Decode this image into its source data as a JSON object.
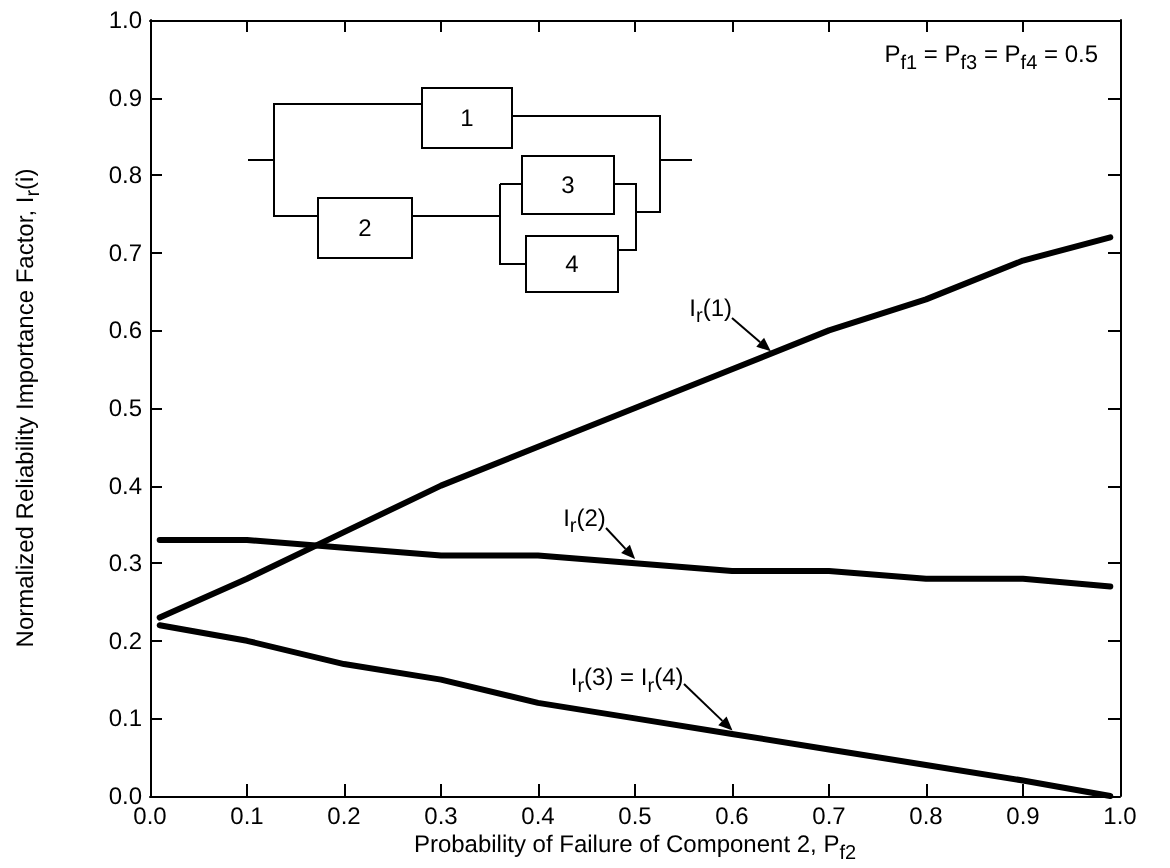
{
  "chart_data": {
    "type": "line",
    "xlabel": "Probability of Failure of Component 2, P$_{f2}$",
    "ylabel": "Normalized Reliability Importance Factor, I$_{r}$(i)",
    "annotations": [
      "P$_{f1}$ = P$_{f3}$ = P$_{f4}$ = 0.5",
      "1",
      "2",
      "3",
      "4"
    ],
    "x": [
      0.01,
      0.1,
      0.2,
      0.3,
      0.4,
      0.5,
      0.6,
      0.7,
      0.8,
      0.9,
      0.99
    ],
    "series": [
      {
        "name": "I$_{r}$(1)",
        "color": "#000000",
        "values": [
          0.23,
          0.28,
          0.34,
          0.4,
          0.45,
          0.5,
          0.55,
          0.6,
          0.64,
          0.69,
          0.72
        ]
      },
      {
        "name": "I$_{r}$(2)",
        "color": "#000000",
        "values": [
          0.33,
          0.33,
          0.32,
          0.31,
          0.31,
          0.3,
          0.29,
          0.29,
          0.28,
          0.28,
          0.27
        ]
      },
      {
        "name": "I$_{r}$(3) = I$_{r}$(4)",
        "color": "#000000",
        "values": [
          0.22,
          0.2,
          0.17,
          0.15,
          0.12,
          0.1,
          0.08,
          0.06,
          0.04,
          0.02,
          0.0
        ]
      }
    ],
    "xlim": [
      0,
      1
    ],
    "xticks": [
      {
        "value": 0,
        "label": "0.0"
      },
      0.1,
      0.2,
      0.3,
      0.4,
      0.5,
      0.6,
      0.7,
      0.8,
      0.9,
      {
        "value": 1,
        "label": "1.0"
      }
    ],
    "ylim": [
      0,
      1
    ],
    "yticks": [
      {
        "value": 0,
        "label": "0.0"
      },
      0.1,
      0.2,
      0.3,
      0.4,
      0.5,
      0.6,
      0.7,
      0.8,
      0.9,
      {
        "value": 1,
        "label": "1.0"
      }
    ],
    "grid": false,
    "legend": false,
    "marker": "none",
    "line_style": "solid"
  }
}
